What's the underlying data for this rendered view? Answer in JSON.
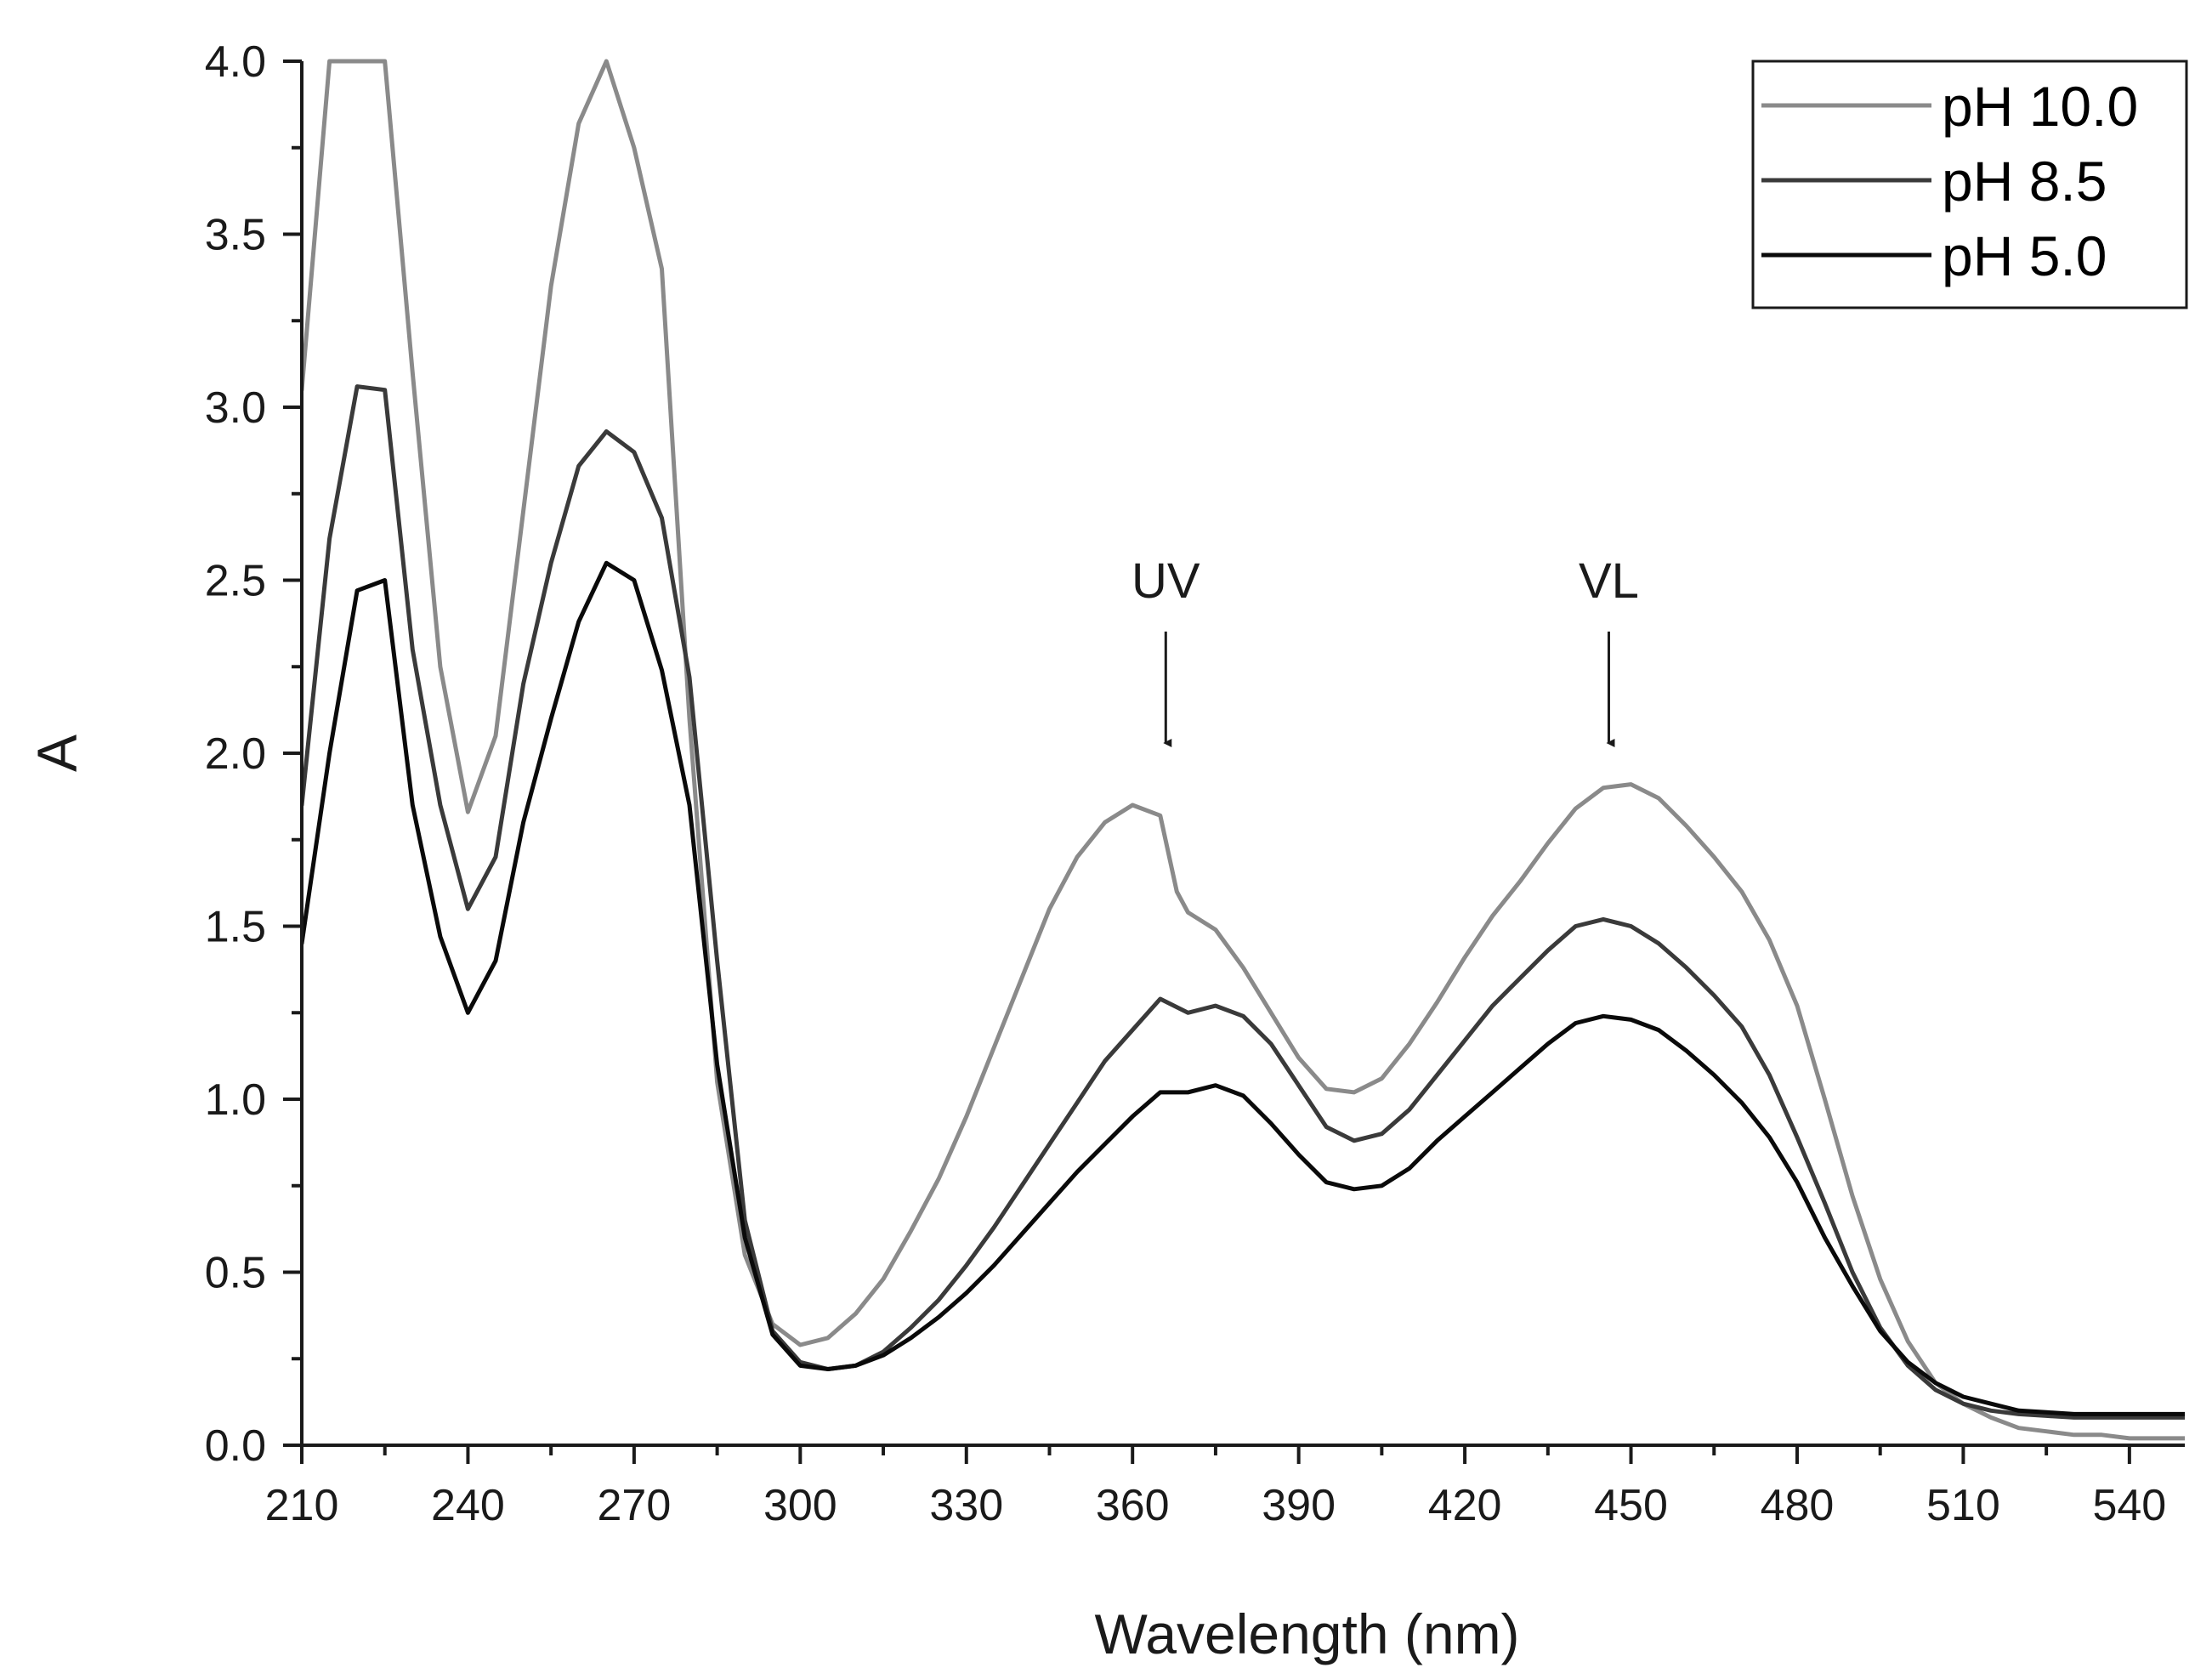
{
  "chart_data": {
    "type": "line",
    "title": "",
    "xlabel": "Wavelength (nm)",
    "ylabel": "A",
    "xlim": [
      210,
      550
    ],
    "ylim": [
      0.0,
      4.0
    ],
    "x_ticks": [
      210,
      240,
      270,
      300,
      330,
      360,
      390,
      420,
      450,
      480,
      510,
      540
    ],
    "x_tick_labels": [
      "210",
      "240",
      "270",
      "300",
      "330",
      "360",
      "390",
      "420",
      "450",
      "480",
      "510",
      "540"
    ],
    "y_ticks": [
      0.0,
      0.5,
      1.0,
      1.5,
      2.0,
      2.5,
      3.0,
      3.5,
      4.0
    ],
    "y_tick_labels": [
      "0.0",
      "0.5",
      "1.0",
      "1.5",
      "2.0",
      "2.5",
      "3.0",
      "3.5",
      "4.0"
    ],
    "grid": false,
    "legend_position": "top-right",
    "series": [
      {
        "name": "pH 10.0",
        "color": "#8a8a8a",
        "x": [
          210,
          215,
          220,
          225,
          230,
          235,
          240,
          245,
          250,
          255,
          260,
          265,
          270,
          275,
          280,
          285,
          290,
          295,
          300,
          305,
          310,
          315,
          320,
          325,
          330,
          335,
          340,
          345,
          350,
          355,
          360,
          365,
          368,
          370,
          375,
          380,
          385,
          390,
          395,
          400,
          405,
          410,
          415,
          420,
          425,
          430,
          435,
          440,
          445,
          450,
          455,
          460,
          465,
          470,
          475,
          480,
          485,
          490,
          495,
          500,
          505,
          510,
          515,
          520,
          525,
          530,
          535,
          540,
          545,
          550
        ],
        "y": [
          3.05,
          4.0,
          4.0,
          4.0,
          3.1,
          2.25,
          1.83,
          2.05,
          2.7,
          3.35,
          3.82,
          4.0,
          3.75,
          3.4,
          2.1,
          1.05,
          0.55,
          0.35,
          0.29,
          0.31,
          0.38,
          0.48,
          0.62,
          0.77,
          0.95,
          1.15,
          1.35,
          1.55,
          1.7,
          1.8,
          1.85,
          1.82,
          1.6,
          1.54,
          1.49,
          1.38,
          1.25,
          1.12,
          1.03,
          1.02,
          1.06,
          1.16,
          1.28,
          1.41,
          1.53,
          1.63,
          1.74,
          1.84,
          1.9,
          1.91,
          1.87,
          1.79,
          1.7,
          1.6,
          1.46,
          1.27,
          1.0,
          0.72,
          0.48,
          0.3,
          0.18,
          0.12,
          0.08,
          0.05,
          0.04,
          0.03,
          0.03,
          0.02,
          0.02,
          0.02
        ]
      },
      {
        "name": "pH 8.5",
        "color": "#3a3a3a",
        "x": [
          210,
          215,
          220,
          225,
          230,
          235,
          240,
          245,
          250,
          255,
          260,
          265,
          270,
          275,
          280,
          285,
          290,
          295,
          300,
          305,
          310,
          315,
          320,
          325,
          330,
          335,
          340,
          345,
          350,
          355,
          360,
          365,
          370,
          375,
          380,
          385,
          390,
          395,
          400,
          405,
          410,
          415,
          420,
          425,
          430,
          435,
          440,
          445,
          450,
          455,
          460,
          465,
          470,
          475,
          480,
          485,
          490,
          495,
          500,
          505,
          510,
          515,
          520,
          525,
          530,
          535,
          540,
          545,
          550
        ],
        "y": [
          1.85,
          2.62,
          3.06,
          3.05,
          2.3,
          1.85,
          1.55,
          1.7,
          2.2,
          2.55,
          2.83,
          2.93,
          2.87,
          2.68,
          2.22,
          1.4,
          0.65,
          0.33,
          0.24,
          0.22,
          0.23,
          0.27,
          0.34,
          0.42,
          0.52,
          0.63,
          0.75,
          0.87,
          0.99,
          1.11,
          1.2,
          1.29,
          1.25,
          1.27,
          1.24,
          1.16,
          1.04,
          0.92,
          0.88,
          0.9,
          0.97,
          1.07,
          1.17,
          1.27,
          1.35,
          1.43,
          1.5,
          1.52,
          1.5,
          1.45,
          1.38,
          1.3,
          1.21,
          1.07,
          0.89,
          0.7,
          0.5,
          0.34,
          0.23,
          0.16,
          0.12,
          0.1,
          0.09,
          0.085,
          0.08,
          0.08,
          0.08,
          0.08,
          0.08
        ]
      },
      {
        "name": "pH 5.0",
        "color": "#0a0a0a",
        "x": [
          210,
          215,
          220,
          225,
          230,
          235,
          240,
          245,
          250,
          255,
          260,
          265,
          270,
          275,
          280,
          285,
          290,
          295,
          300,
          305,
          310,
          315,
          320,
          325,
          330,
          335,
          340,
          345,
          350,
          355,
          360,
          365,
          370,
          375,
          380,
          385,
          390,
          395,
          400,
          405,
          410,
          415,
          420,
          425,
          430,
          435,
          440,
          445,
          450,
          455,
          460,
          465,
          470,
          475,
          480,
          485,
          490,
          495,
          500,
          505,
          510,
          515,
          520,
          525,
          530,
          535,
          540,
          545,
          550
        ],
        "y": [
          1.45,
          2.0,
          2.47,
          2.5,
          1.85,
          1.47,
          1.25,
          1.4,
          1.8,
          2.1,
          2.38,
          2.55,
          2.5,
          2.24,
          1.85,
          1.1,
          0.6,
          0.32,
          0.23,
          0.22,
          0.23,
          0.26,
          0.31,
          0.37,
          0.44,
          0.52,
          0.61,
          0.7,
          0.79,
          0.87,
          0.95,
          1.02,
          1.02,
          1.04,
          1.01,
          0.93,
          0.84,
          0.76,
          0.74,
          0.75,
          0.8,
          0.88,
          0.95,
          1.02,
          1.09,
          1.16,
          1.22,
          1.24,
          1.23,
          1.2,
          1.14,
          1.07,
          0.99,
          0.89,
          0.76,
          0.6,
          0.46,
          0.33,
          0.24,
          0.18,
          0.14,
          0.12,
          0.1,
          0.095,
          0.09,
          0.09,
          0.09,
          0.09,
          0.09
        ]
      }
    ],
    "annotations": [
      {
        "text": "UV",
        "x": 366,
        "y_text": 2.45,
        "y_arrow_tip": 2.0
      },
      {
        "text": "VL",
        "x": 446,
        "y_text": 2.45,
        "y_arrow_tip": 2.0
      }
    ]
  }
}
